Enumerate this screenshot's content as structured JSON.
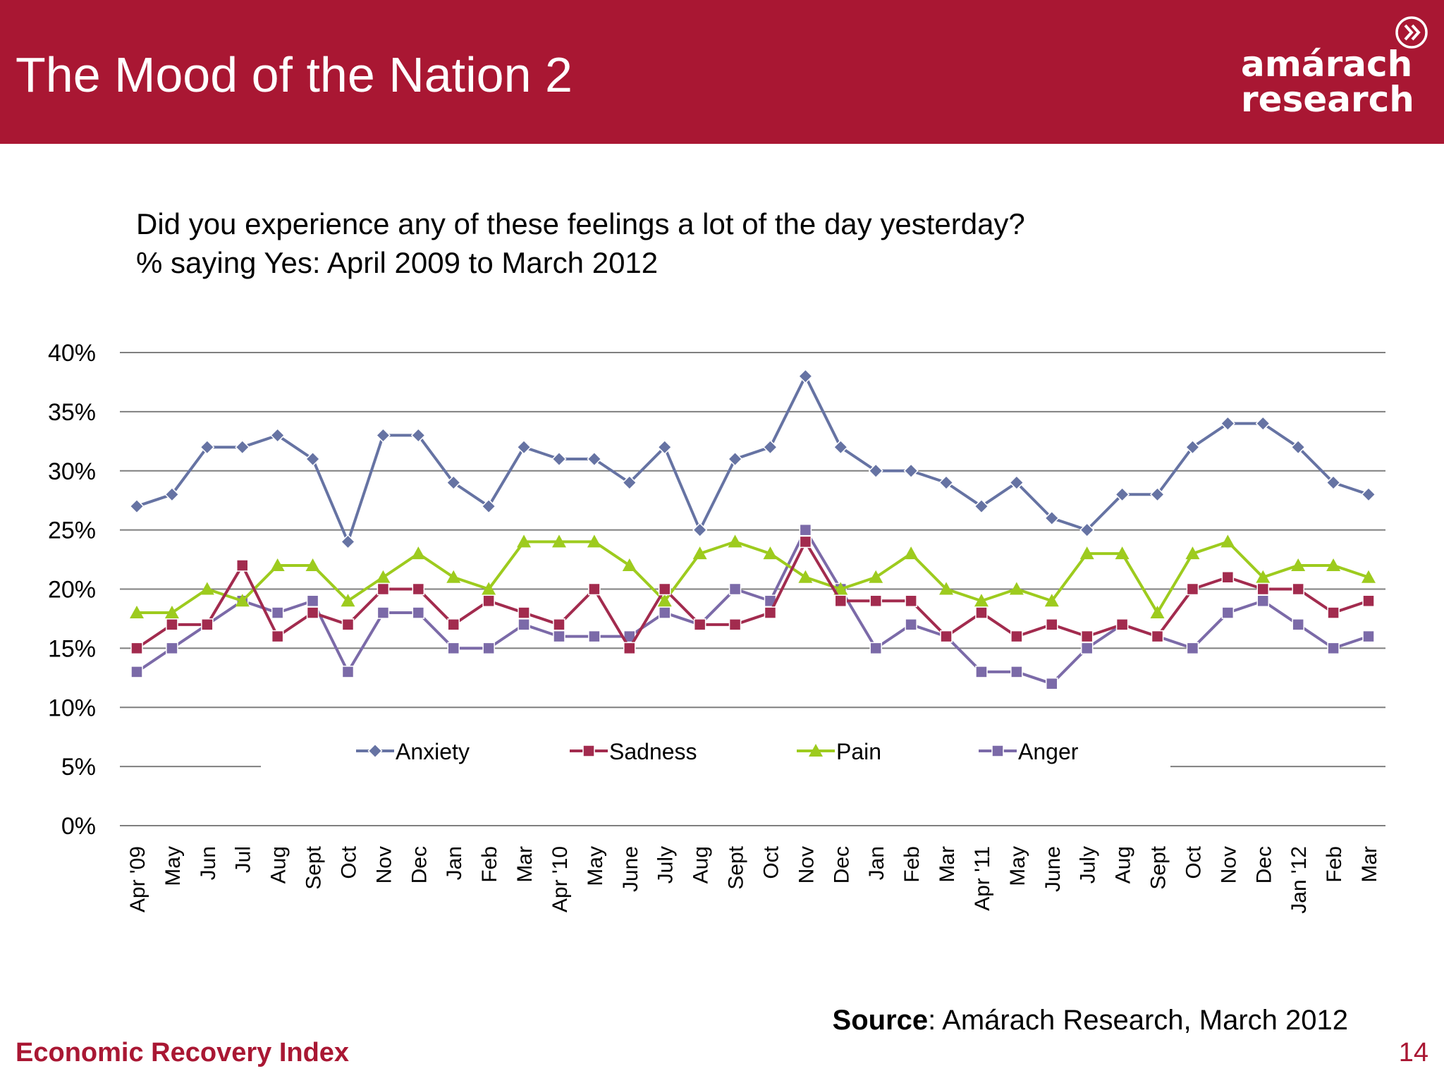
{
  "slide": {
    "title": "The Mood of the Nation 2",
    "logo_line1": "amárach",
    "logo_line2": "research",
    "question_line1": "Did you experience any of these feelings a lot of the day yesterday?",
    "question_line2": "% saying Yes: April 2009 to March 2012",
    "source_bold": "Source",
    "source_rest": ": Amárach Research, March 2012",
    "footer": "Economic Recovery Index",
    "page_number": "14"
  },
  "colors": {
    "header": "#a91733",
    "anxiety": "#6673a3",
    "sadness": "#a22b4e",
    "pain": "#9dcb1e",
    "anger": "#7b6aa8"
  },
  "chart_data": {
    "type": "line",
    "title": "",
    "xlabel": "",
    "ylabel": "",
    "ylim": [
      0,
      40
    ],
    "y_ticks": [
      0,
      5,
      10,
      15,
      20,
      25,
      30,
      35,
      40
    ],
    "y_tick_labels": [
      "0%",
      "5%",
      "10%",
      "15%",
      "20%",
      "25%",
      "30%",
      "35%",
      "40%"
    ],
    "grid": true,
    "legend_position": "bottom, inside plot",
    "categories": [
      "Apr '09",
      "May",
      "Jun",
      "Jul",
      "Aug",
      "Sept",
      "Oct",
      "Nov",
      "Dec",
      "Jan",
      "Feb",
      "Mar",
      "Apr '10",
      "May",
      "June",
      "July",
      "Aug",
      "Sept",
      "Oct",
      "Nov",
      "Dec",
      "Jan",
      "Feb",
      "Mar",
      "Apr '11",
      "May",
      "June",
      "July",
      "Aug",
      "Sept",
      "Oct",
      "Nov",
      "Dec",
      "Jan '12",
      "Feb",
      "Mar"
    ],
    "series": [
      {
        "name": "Anxiety",
        "marker": "diamond",
        "values": [
          27,
          28,
          32,
          32,
          33,
          31,
          24,
          33,
          33,
          29,
          27,
          32,
          31,
          31,
          29,
          32,
          25,
          31,
          32,
          38,
          32,
          30,
          30,
          29,
          27,
          29,
          26,
          25,
          28,
          28,
          32,
          34,
          34,
          32,
          29,
          28
        ]
      },
      {
        "name": "Sadness",
        "marker": "square",
        "values": [
          15,
          17,
          17,
          22,
          16,
          18,
          17,
          20,
          20,
          17,
          19,
          18,
          17,
          20,
          15,
          20,
          17,
          17,
          18,
          24,
          19,
          19,
          19,
          16,
          18,
          16,
          17,
          16,
          17,
          16,
          20,
          21,
          20,
          20,
          18,
          19
        ]
      },
      {
        "name": "Pain",
        "marker": "triangle",
        "values": [
          18,
          18,
          20,
          19,
          22,
          22,
          19,
          21,
          23,
          21,
          20,
          24,
          24,
          24,
          22,
          19,
          23,
          24,
          23,
          21,
          20,
          21,
          23,
          20,
          19,
          20,
          19,
          23,
          23,
          18,
          23,
          24,
          21,
          22,
          22,
          21
        ]
      },
      {
        "name": "Anger",
        "marker": "square",
        "values": [
          13,
          15,
          17,
          19,
          18,
          19,
          13,
          18,
          18,
          15,
          15,
          17,
          16,
          16,
          16,
          18,
          17,
          20,
          19,
          25,
          20,
          15,
          17,
          16,
          13,
          13,
          12,
          15,
          17,
          16,
          15,
          18,
          19,
          17,
          15,
          16
        ]
      }
    ]
  }
}
